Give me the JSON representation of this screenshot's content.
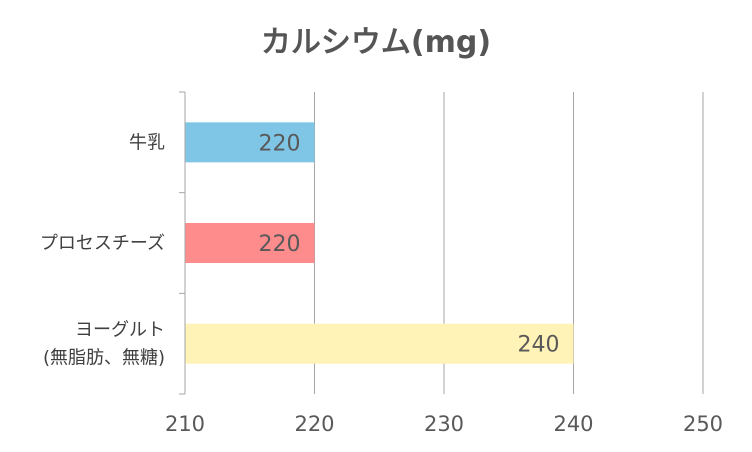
{
  "chart_data": {
    "type": "bar",
    "orientation": "horizontal",
    "title": "カルシウム(mg)",
    "categories": [
      [
        "牛乳"
      ],
      [
        "プロセスチーズ"
      ],
      [
        "ヨーグルト",
        "(無脂肪、無糖)"
      ]
    ],
    "values": [
      220,
      220,
      240
    ],
    "data_labels": [
      "220",
      "220",
      "240"
    ],
    "bar_colors": [
      "#7fc6e6",
      "#ff8c8c",
      "#fff3b8"
    ],
    "xlim": [
      210,
      250
    ],
    "xticks": [
      210,
      220,
      230,
      240,
      250
    ],
    "xtick_labels": [
      "210",
      "220",
      "230",
      "240",
      "250"
    ],
    "xlabel": "",
    "ylabel": "",
    "grid": true,
    "legend": "none"
  }
}
